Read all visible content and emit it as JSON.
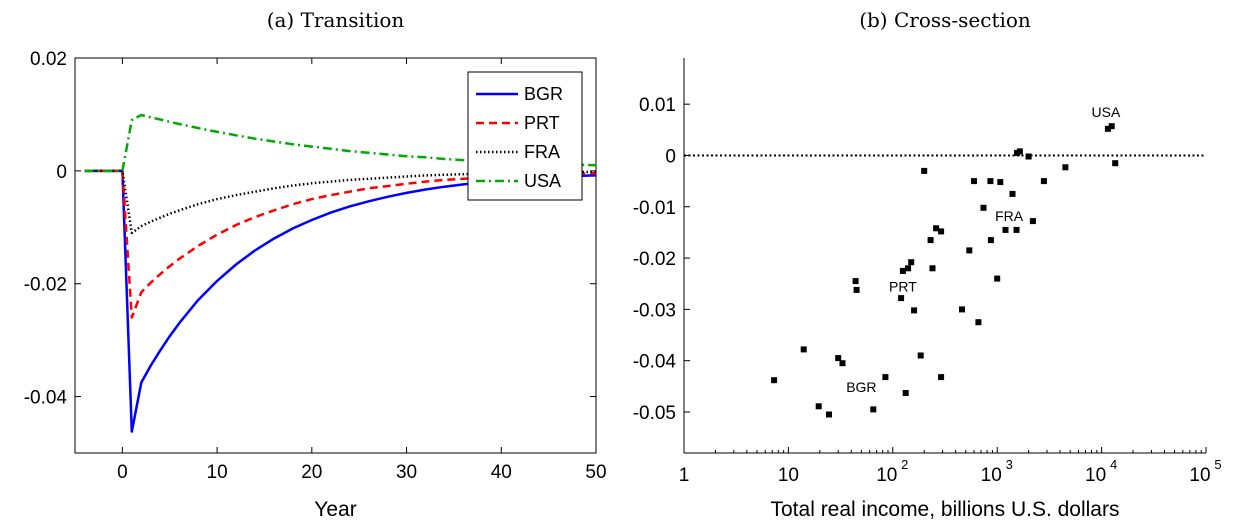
{
  "chart_data": [
    {
      "type": "line",
      "title": "(a) Transition",
      "xlabel": "Year",
      "ylabel": "",
      "xlim": [
        -5,
        50
      ],
      "ylim": [
        -0.05,
        0.02
      ],
      "xticks": [
        0,
        10,
        20,
        30,
        40,
        50
      ],
      "xtick_labels": [
        "0",
        "10",
        "20",
        "30",
        "40",
        "50"
      ],
      "yticks": [
        0.02,
        0,
        -0.02,
        -0.04
      ],
      "ytick_labels": [
        "0.02",
        "0",
        "-0.02",
        "-0.04"
      ],
      "legend_position": "top-right",
      "series": [
        {
          "name": "BGR",
          "color": "#0000ff",
          "style": "solid",
          "x": [
            -4,
            0,
            1,
            2,
            3,
            4,
            5,
            6,
            8,
            10,
            12,
            14,
            16,
            18,
            20,
            22,
            24,
            26,
            28,
            30,
            32,
            34,
            36,
            38,
            40,
            42,
            44,
            46,
            48,
            50
          ],
          "y": [
            0,
            0,
            -0.0462,
            -0.0375,
            -0.0345,
            -0.0318,
            -0.0293,
            -0.027,
            -0.0229,
            -0.0195,
            -0.0166,
            -0.0141,
            -0.012,
            -0.0102,
            -0.0087,
            -0.0074,
            -0.0063,
            -0.0054,
            -0.0046,
            -0.0039,
            -0.0033,
            -0.0028,
            -0.0024,
            -0.002,
            -0.0017,
            -0.0015,
            -0.0012,
            -0.001,
            -0.0009,
            -0.0008
          ]
        },
        {
          "name": "PRT",
          "color": "#ff0000",
          "style": "dashed",
          "x": [
            -4,
            0,
            1,
            2,
            3,
            4,
            5,
            6,
            8,
            10,
            12,
            14,
            16,
            18,
            20,
            22,
            24,
            26,
            28,
            30,
            32,
            34,
            36,
            38,
            40,
            42,
            44,
            46,
            48,
            50
          ],
          "y": [
            0,
            0,
            -0.026,
            -0.0215,
            -0.0198,
            -0.0183,
            -0.0169,
            -0.0156,
            -0.0133,
            -0.0113,
            -0.0096,
            -0.0082,
            -0.007,
            -0.0059,
            -0.005,
            -0.0043,
            -0.0037,
            -0.0031,
            -0.0027,
            -0.0023,
            -0.0019,
            -0.0016,
            -0.0014,
            -0.0012,
            -0.001,
            -0.0009,
            -0.0007,
            -0.0006,
            -0.0005,
            -0.0004
          ]
        },
        {
          "name": "FRA",
          "color": "#000000",
          "style": "dotted",
          "x": [
            -4,
            0,
            1,
            2,
            3,
            4,
            5,
            6,
            8,
            10,
            12,
            14,
            16,
            18,
            20,
            22,
            24,
            26,
            28,
            30,
            32,
            34,
            36,
            38,
            40,
            42,
            44,
            46,
            48,
            50
          ],
          "y": [
            0,
            0,
            -0.011,
            -0.0098,
            -0.009,
            -0.0083,
            -0.0076,
            -0.007,
            -0.0059,
            -0.005,
            -0.0043,
            -0.0037,
            -0.0031,
            -0.0026,
            -0.0022,
            -0.0019,
            -0.0016,
            -0.0014,
            -0.0012,
            -0.001,
            -0.0008,
            -0.0007,
            -0.0006,
            -0.0005,
            -0.0004,
            -0.0004,
            -0.0003,
            -0.0003,
            -0.0002,
            -0.0002
          ]
        },
        {
          "name": "USA",
          "color": "#00aa00",
          "style": "dashdot",
          "x": [
            -4,
            0,
            1,
            2,
            3,
            4,
            5,
            6,
            8,
            10,
            12,
            14,
            16,
            18,
            20,
            22,
            24,
            26,
            28,
            30,
            32,
            34,
            36,
            38,
            40,
            42,
            44,
            46,
            48,
            50
          ],
          "y": [
            0,
            0,
            0.009,
            0.0099,
            0.0095,
            0.0091,
            0.0087,
            0.0083,
            0.0076,
            0.0069,
            0.0063,
            0.0057,
            0.0052,
            0.0047,
            0.0043,
            0.0039,
            0.0035,
            0.0032,
            0.0029,
            0.0026,
            0.0024,
            0.0021,
            0.0019,
            0.0017,
            0.0016,
            0.0014,
            0.0013,
            0.0012,
            0.0011,
            0.001
          ]
        }
      ]
    },
    {
      "type": "scatter",
      "title": "(b) Cross-section",
      "xlabel": "Total real income, billions U.S. dollars",
      "ylabel": "",
      "xscale": "log",
      "xlim": [
        1,
        100000
      ],
      "ylim": [
        -0.058,
        0.019
      ],
      "xticks": [
        {
          "value": 1,
          "base": "1",
          "exp": ""
        },
        {
          "value": 10,
          "base": "10",
          "exp": ""
        },
        {
          "value": 100,
          "base": "10",
          "exp": "2"
        },
        {
          "value": 1000,
          "base": "10",
          "exp": "3"
        },
        {
          "value": 10000,
          "base": "10",
          "exp": "4"
        },
        {
          "value": 100000,
          "base": "10",
          "exp": "5"
        }
      ],
      "yticks": [
        0.01,
        0,
        -0.01,
        -0.02,
        -0.03,
        -0.04,
        -0.05
      ],
      "ytick_labels": [
        "0.01",
        "0",
        "-0.01",
        "-0.02",
        "-0.03",
        "-0.04",
        "-0.05"
      ],
      "reference_line": {
        "y": 0,
        "style": "dotted"
      },
      "points": [
        {
          "x": 7.3,
          "y": -0.0438
        },
        {
          "x": 14,
          "y": -0.0378
        },
        {
          "x": 19.5,
          "y": -0.0489
        },
        {
          "x": 24.5,
          "y": -0.0505
        },
        {
          "x": 30,
          "y": -0.0395
        },
        {
          "x": 33,
          "y": -0.0405
        },
        {
          "x": 44,
          "y": -0.0245
        },
        {
          "x": 45,
          "y": -0.0262
        },
        {
          "x": 65,
          "y": -0.0495
        },
        {
          "x": 85,
          "y": -0.0432
        },
        {
          "x": 120,
          "y": -0.0278
        },
        {
          "x": 125,
          "y": -0.0225
        },
        {
          "x": 133,
          "y": -0.0463
        },
        {
          "x": 140,
          "y": -0.022
        },
        {
          "x": 150,
          "y": -0.0208
        },
        {
          "x": 160,
          "y": -0.0302
        },
        {
          "x": 185,
          "y": -0.039
        },
        {
          "x": 200,
          "y": -0.003
        },
        {
          "x": 230,
          "y": -0.0165
        },
        {
          "x": 240,
          "y": -0.022
        },
        {
          "x": 260,
          "y": -0.0142
        },
        {
          "x": 290,
          "y": -0.0148
        },
        {
          "x": 290,
          "y": -0.0432
        },
        {
          "x": 460,
          "y": -0.03
        },
        {
          "x": 540,
          "y": -0.0185
        },
        {
          "x": 600,
          "y": -0.005
        },
        {
          "x": 660,
          "y": -0.0325
        },
        {
          "x": 740,
          "y": -0.0102
        },
        {
          "x": 860,
          "y": -0.005
        },
        {
          "x": 870,
          "y": -0.0165
        },
        {
          "x": 1000,
          "y": -0.024
        },
        {
          "x": 1070,
          "y": -0.0052
        },
        {
          "x": 1200,
          "y": -0.0145
        },
        {
          "x": 1400,
          "y": -0.0075
        },
        {
          "x": 1530,
          "y": -0.0145
        },
        {
          "x": 1550,
          "y": 0.0005
        },
        {
          "x": 1650,
          "y": 0.0008
        },
        {
          "x": 2000,
          "y": -0.0002
        },
        {
          "x": 2200,
          "y": -0.0128
        },
        {
          "x": 2800,
          "y": -0.005
        },
        {
          "x": 4500,
          "y": -0.0023
        },
        {
          "x": 11500,
          "y": 0.0052
        },
        {
          "x": 12500,
          "y": 0.0057
        },
        {
          "x": 13500,
          "y": -0.0015
        }
      ],
      "annotations": [
        {
          "text": "USA",
          "x": 11000,
          "y": 0.0075
        },
        {
          "text": "FRA",
          "x": 1300,
          "y": -0.0128
        },
        {
          "text": "PRT",
          "x": 125,
          "y": -0.0265
        },
        {
          "text": "BGR",
          "x": 50,
          "y": -0.0461
        }
      ]
    }
  ]
}
